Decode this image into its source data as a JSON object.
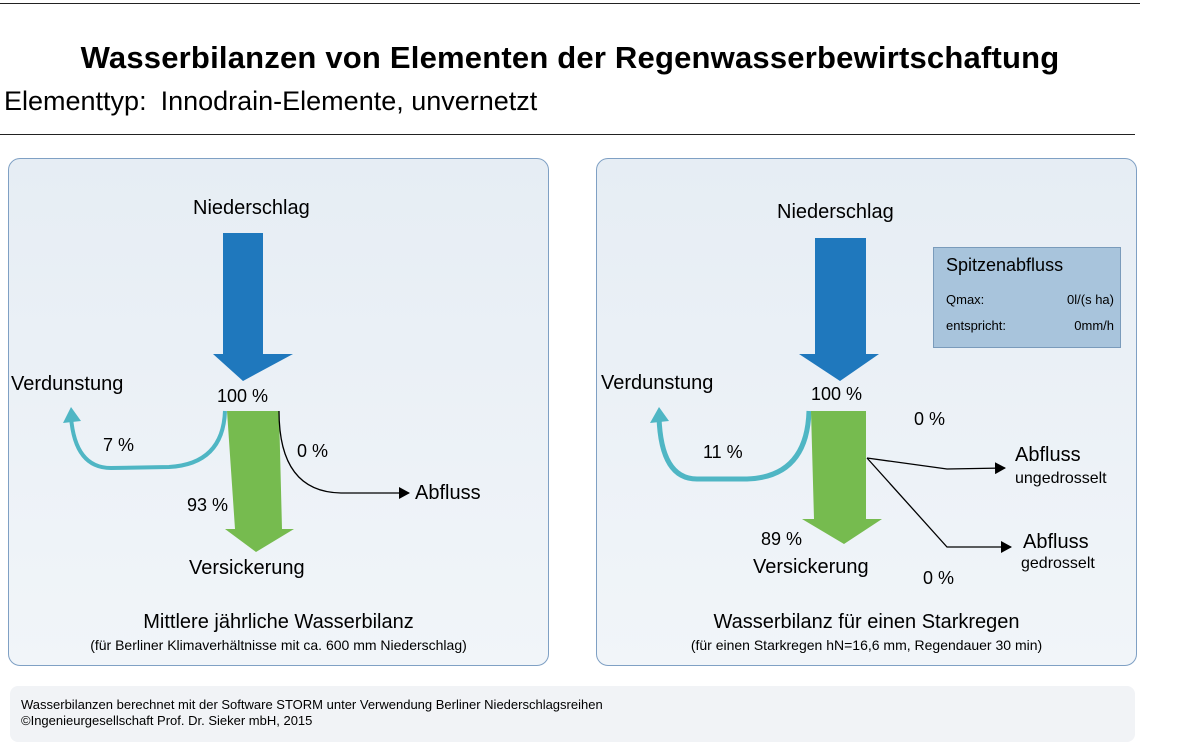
{
  "header": {
    "title": "Wasserbilanzen von Elementen der Regenwasserbewirtschaftung",
    "element_type_label": "Elementtyp:",
    "element_type_value": "Innodrain-Elemente, unvernetzt"
  },
  "left_panel": {
    "precipitation_label": "Niederschlag",
    "precipitation_percent": "100 %",
    "evaporation_label": "Verdunstung",
    "evaporation_percent": "7 %",
    "runoff_label": "Abfluss",
    "runoff_percent": "0 %",
    "infiltration_label": "Versickerung",
    "infiltration_percent": "93 %",
    "caption_title": "Mittlere jährliche Wasserbilanz",
    "caption_note": "(für Berliner Klimaverhältnisse mit ca. 600 mm Niederschlag)"
  },
  "right_panel": {
    "precipitation_label": "Niederschlag",
    "precipitation_percent": "100 %",
    "evaporation_label": "Verdunstung",
    "evaporation_percent": "11 %",
    "runoff_unthrottled_label": "Abfluss",
    "runoff_unthrottled_sub": "ungedrosselt",
    "runoff_unthrottled_percent": "0 %",
    "runoff_throttled_label": "Abfluss",
    "runoff_throttled_sub": "gedrosselt",
    "runoff_throttled_percent": "0 %",
    "infiltration_label": "Versickerung",
    "infiltration_percent": "89 %",
    "peak_box": {
      "title": "Spitzenabfluss",
      "qmax_label": "Qmax:",
      "qmax_value": "0l/(s ha)",
      "equiv_label": "entspricht:",
      "equiv_value": "0mm/h"
    },
    "caption_title": "Wasserbilanz für einen Starkregen",
    "caption_note": "(für einen Starkregen hN=16,6 mm, Regendauer 30 min)"
  },
  "footer": {
    "line1": "Wasserbilanzen berechnet mit der Software STORM unter Verwendung Berliner Niederschlagsreihen",
    "line2": "©Ingenieurgesellschaft Prof. Dr. Sieker mbH, 2015"
  },
  "colors": {
    "precipitation": "#1f78bd",
    "infiltration": "#76bb4f",
    "evaporation": "#4fb6c4",
    "panel_border": "#7fa0c4",
    "peak_box": "#a8c4dc"
  }
}
